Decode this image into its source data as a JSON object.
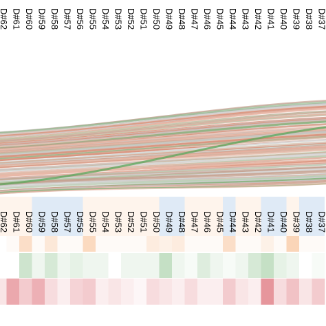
{
  "chart_data": {
    "type": "heatmap",
    "top_labels": [
      "D#62",
      "D#61",
      "D#60",
      "D#59",
      "D#58",
      "D#57",
      "D#56",
      "D#55",
      "D#54",
      "D#53",
      "D#52",
      "D#51",
      "D#50",
      "D#49",
      "D#48",
      "D#47",
      "D#46",
      "D#45",
      "D#44",
      "D#43",
      "D#42",
      "D#41",
      "D#40",
      "D#39",
      "D#38",
      "D#37"
    ],
    "bottom_labels": [
      "D#62",
      "D#61",
      "D#60",
      "D#59",
      "D#58",
      "D#57",
      "D#56",
      "D#55",
      "D#54",
      "D#53",
      "D#52",
      "D#51",
      "D#50",
      "D#49",
      "D#48",
      "D#47",
      "D#46",
      "D#45",
      "D#44",
      "D#43",
      "D#42",
      "D#41",
      "D#40",
      "D#39",
      "D#38",
      "D#37"
    ],
    "tracks": [
      {
        "values": [
          0,
          0.05,
          0.35,
          0.05,
          0.25,
          0.05,
          0.05,
          0.4,
          0.05,
          0.05,
          0.05,
          0.05,
          0.2,
          0.15,
          0.2,
          0.05,
          0.05,
          0.05,
          0.35,
          0.05,
          0.05,
          0.15,
          0.05,
          0.45,
          0.05,
          0.05
        ]
      },
      {
        "values": [
          0,
          0,
          -0.3,
          -0.1,
          -0.25,
          -0.1,
          -0.15,
          -0.1,
          -0.1,
          0,
          -0.1,
          -0.1,
          -0.1,
          -0.35,
          -0.1,
          -0.05,
          -0.2,
          -0.1,
          -0.05,
          -0.1,
          -0.25,
          -0.35,
          -0.15,
          -0.1,
          0,
          -0.05
        ]
      },
      {
        "values": [
          0.15,
          0.5,
          0.3,
          0.45,
          0.2,
          0.1,
          0.25,
          0.3,
          0.1,
          0.15,
          0.1,
          0.05,
          0.2,
          0.15,
          0.1,
          0.2,
          0.1,
          0.1,
          0.3,
          0.15,
          0.1,
          0.6,
          0.2,
          0.35,
          0.15,
          0.3
        ]
      }
    ],
    "blue_tint_columns": [
      3,
      4,
      5,
      6,
      13,
      14,
      18,
      21,
      22,
      24,
      25
    ],
    "flow_band_colors": [
      "#d9d9d9",
      "#c5c5c5",
      "#e8b8a8",
      "#d98f78",
      "#d7aa96",
      "#b6cdb0",
      "#e0c2b0",
      "#c4a08e",
      "#8ab482"
    ],
    "colors": {
      "positive": "#d6505a",
      "negative": "#5aa65a",
      "orange": "#f4a261",
      "blue": "#6f9fd8"
    }
  }
}
